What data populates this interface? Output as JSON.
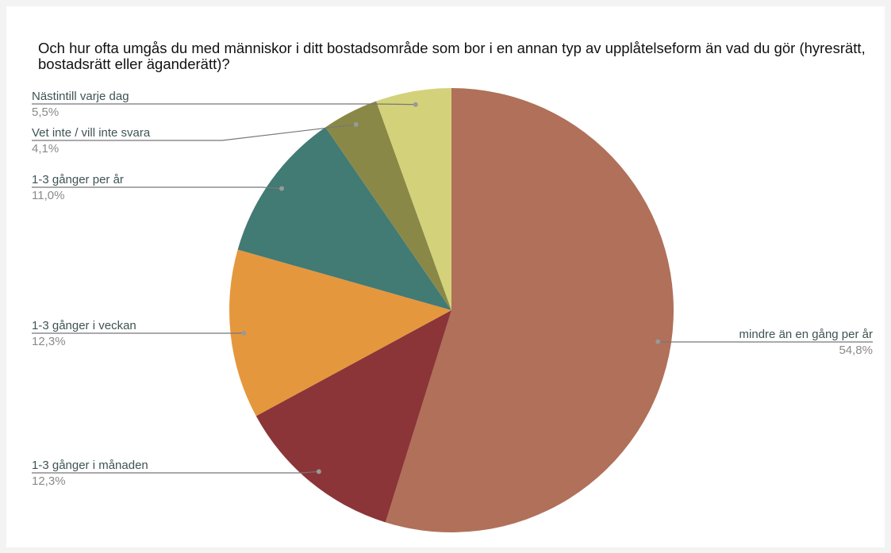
{
  "chart_data": {
    "type": "pie",
    "title": "Och hur ofta umgås du med människor i ditt bostadsområde som bor i en annan typ av upplåtelseform än vad du gör (hyresrätt, bostadsrätt eller äganderätt)?",
    "categories": [
      "mindre än en gång per år",
      "1-3 gånger i månaden",
      "1-3 gånger i veckan",
      "1-3 gånger per år",
      "Vet inte / vill inte svara",
      "Nästintill varje dag"
    ],
    "values": [
      54.8,
      12.3,
      12.3,
      11.0,
      4.1,
      5.5
    ],
    "value_labels": [
      "54,8%",
      "12,3%",
      "12,3%",
      "11,0%",
      "4,1%",
      "5,5%"
    ],
    "colors": [
      "#b07059",
      "#8b3538",
      "#e5973e",
      "#427a74",
      "#8a8847",
      "#d3d27a"
    ]
  }
}
